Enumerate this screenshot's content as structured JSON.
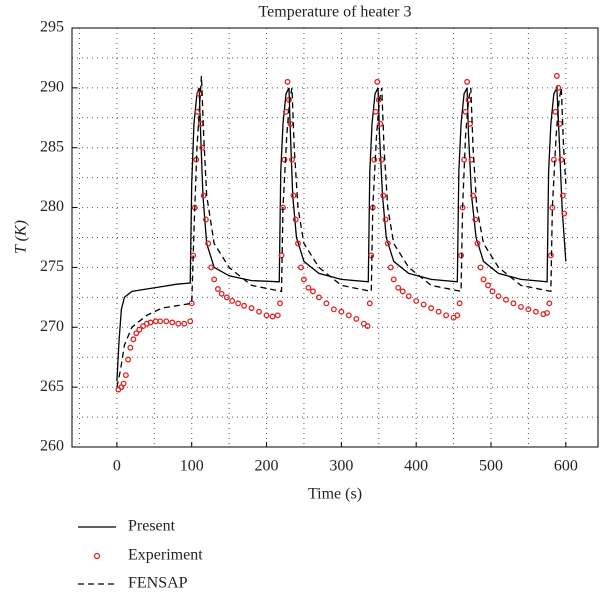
{
  "chart_data": {
    "type": "line",
    "title": "Temperature of heater 3",
    "x_label": "Time (s)",
    "y_label": "T (K)",
    "xlim": [
      -60,
      643
    ],
    "ylim": [
      260,
      295
    ],
    "xticks": [
      0,
      100,
      200,
      300,
      400,
      500,
      600
    ],
    "yticks": [
      260,
      265,
      270,
      275,
      280,
      285,
      290,
      295
    ],
    "xgrid": [
      -50,
      0,
      50,
      100,
      150,
      200,
      250,
      300,
      350,
      400,
      450,
      500,
      550,
      600
    ],
    "ygrid": [
      262.5,
      265,
      267.5,
      270,
      272.5,
      275,
      277.5,
      280,
      282.5,
      285,
      287.5,
      290,
      292.5
    ],
    "series": [
      {
        "name": "Present",
        "color": "#000000",
        "style": "solid",
        "x": [
          0,
          3,
          6,
          10,
          20,
          40,
          60,
          80,
          98,
          100,
          103,
          107,
          110,
          112,
          115,
          120,
          130,
          150,
          180,
          217,
          219,
          222,
          226,
          230,
          232,
          235,
          240,
          250,
          270,
          300,
          336,
          338,
          341,
          345,
          349,
          351,
          355,
          360,
          370,
          390,
          420,
          455,
          457,
          460,
          464,
          468,
          470,
          474,
          480,
          490,
          510,
          540,
          575,
          577,
          580,
          584,
          588,
          591,
          595,
          600
        ],
        "values": [
          265.5,
          269,
          271.5,
          272.5,
          273,
          273.2,
          273.4,
          273.6,
          273.7,
          282,
          287,
          289.5,
          290,
          286,
          281,
          277,
          275,
          274.3,
          273.9,
          273.8,
          283,
          287,
          289.5,
          290,
          286,
          281,
          277.5,
          275.5,
          274.5,
          274,
          273.8,
          283,
          287,
          289.5,
          290,
          286,
          281,
          277.5,
          275.5,
          274.5,
          274,
          273.8,
          283,
          287,
          289.5,
          290,
          286,
          281,
          277.5,
          275.5,
          274.5,
          274,
          273.8,
          283,
          287,
          289.5,
          290,
          286,
          280,
          275.5
        ]
      },
      {
        "name": "Experiment",
        "color": "#e02020",
        "style": "markers",
        "x": [
          2,
          6,
          9,
          12,
          15,
          18,
          22,
          26,
          30,
          35,
          40,
          45,
          52,
          58,
          66,
          74,
          82,
          90,
          98,
          100,
          102,
          104,
          106,
          108,
          110,
          112,
          114,
          116,
          119,
          122,
          126,
          130,
          135,
          140,
          147,
          154,
          162,
          170,
          180,
          190,
          200,
          208,
          215,
          218,
          220,
          222,
          224,
          226,
          228,
          230,
          232,
          234,
          236,
          239,
          242,
          246,
          250,
          256,
          262,
          270,
          280,
          290,
          300,
          310,
          320,
          330,
          335,
          338,
          340,
          342,
          344,
          346,
          348,
          350,
          352,
          354,
          356,
          359,
          362,
          366,
          370,
          376,
          382,
          390,
          400,
          410,
          420,
          430,
          440,
          450,
          455,
          458,
          460,
          462,
          464,
          466,
          468,
          470,
          472,
          474,
          476,
          479,
          482,
          486,
          490,
          496,
          502,
          510,
          520,
          530,
          540,
          550,
          560,
          570,
          575,
          578,
          580,
          582,
          584,
          586,
          588,
          590,
          592,
          594,
          596,
          598
        ],
        "values": [
          264.8,
          265,
          265.3,
          266,
          267.3,
          268.3,
          269,
          269.5,
          269.8,
          270.1,
          270.3,
          270.4,
          270.5,
          270.5,
          270.5,
          270.4,
          270.3,
          270.3,
          270.5,
          272,
          276,
          280,
          284,
          288,
          289.5,
          287,
          285,
          281,
          279,
          277,
          275,
          274,
          273.2,
          272.8,
          272.5,
          272.2,
          272,
          271.8,
          271.6,
          271.3,
          271,
          270.9,
          271,
          272,
          276,
          280,
          284,
          288,
          290.5,
          289,
          287,
          284,
          281,
          279,
          277,
          275,
          274,
          273.3,
          273,
          272.5,
          272,
          271.5,
          271.3,
          271,
          270.7,
          270.3,
          270.1,
          272,
          276,
          280,
          284,
          288,
          290.5,
          289,
          287,
          284,
          281,
          279,
          277,
          275,
          274,
          273.3,
          273,
          272.6,
          272.2,
          271.9,
          271.6,
          271.3,
          271,
          270.8,
          271,
          272,
          276,
          280,
          284,
          288,
          290.5,
          289,
          287,
          284,
          281,
          279,
          277,
          275,
          274,
          273.5,
          273,
          272.6,
          272.3,
          272,
          271.7,
          271.5,
          271.3,
          271.1,
          271.2,
          272,
          276,
          280,
          284,
          288,
          291,
          290,
          287,
          284,
          281,
          279.5
        ]
      },
      {
        "name": "FENSAP",
        "color": "#000000",
        "style": "dashed",
        "x": [
          0,
          5,
          10,
          20,
          40,
          60,
          80,
          100,
          103,
          107,
          111,
          113,
          116,
          120,
          130,
          150,
          180,
          220,
          222,
          227,
          231,
          234,
          237,
          242,
          250,
          270,
          300,
          340,
          342,
          347,
          351,
          354,
          357,
          362,
          370,
          390,
          420,
          460,
          462,
          466,
          470,
          473,
          476,
          481,
          490,
          510,
          540,
          580,
          582,
          587,
          591,
          594,
          597,
          600
        ],
        "values": [
          265,
          266.5,
          268.5,
          270,
          271,
          271.6,
          271.8,
          272,
          278,
          285,
          289,
          291,
          286,
          281,
          277,
          275,
          273.5,
          273,
          280,
          286,
          289,
          290,
          285,
          280,
          277,
          275,
          273.5,
          273,
          280,
          286,
          289,
          290,
          285,
          280,
          277,
          275,
          273.5,
          273,
          280,
          286,
          289,
          290,
          285,
          280,
          277,
          275,
          273.5,
          273,
          280,
          286,
          289,
          290,
          285,
          282
        ]
      }
    ]
  }
}
